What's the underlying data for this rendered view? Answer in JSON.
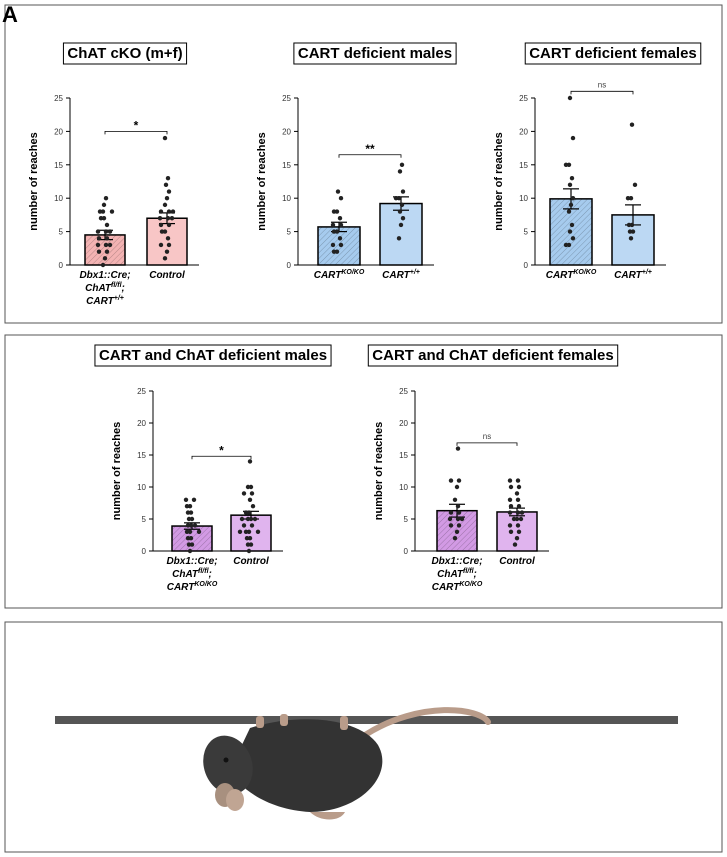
{
  "panel_label": "A",
  "chart_data": [
    {
      "type": "bar",
      "title": "ChAT cKO (m+f)",
      "ylabel": "number of reaches",
      "ylim": [
        0,
        25
      ],
      "yticks": [
        0,
        5,
        10,
        15,
        20,
        25
      ],
      "categories": [
        [
          [
            {
              "text": "Dbx1::Cre;"
            }
          ],
          [
            {
              "text": "ChAT"
            },
            {
              "sup": "fl/fl"
            },
            {
              "text": ";"
            }
          ],
          [
            {
              "text": "CART"
            },
            {
              "sup": "+/+"
            }
          ]
        ],
        [
          [
            {
              "text": "Control"
            }
          ]
        ]
      ],
      "values": [
        4.5,
        7
      ],
      "errors": [
        0.7,
        0.8
      ],
      "colors": [
        "#f3b3b3",
        "#f8c6c6"
      ],
      "hatched": [
        true,
        false
      ],
      "points": [
        [
          0,
          1,
          2,
          2,
          3,
          3,
          3,
          4,
          4,
          5,
          5,
          5,
          6,
          7,
          7,
          8,
          8,
          8,
          9,
          10
        ],
        [
          1,
          2,
          3,
          3,
          4,
          5,
          5,
          6,
          6,
          7,
          7,
          7,
          8,
          8,
          8,
          9,
          10,
          11,
          12,
          13,
          19
        ]
      ],
      "annotation": {
        "text": "*",
        "y": 20
      }
    },
    {
      "type": "bar",
      "title": "CART deficient males",
      "ylabel": "number of reaches",
      "ylim": [
        0,
        25
      ],
      "yticks": [
        0,
        5,
        10,
        15,
        20,
        25
      ],
      "categories": [
        [
          [
            {
              "text": "CART"
            },
            {
              "sup": "KO/KO"
            }
          ]
        ],
        [
          [
            {
              "text": "CART"
            },
            {
              "sup": "+/+"
            }
          ]
        ]
      ],
      "values": [
        5.7,
        9.2
      ],
      "errors": [
        0.7,
        1.0
      ],
      "colors": [
        "#a6cbee",
        "#bcd8f3"
      ],
      "hatched": [
        true,
        false
      ],
      "points": [
        [
          2,
          2,
          3,
          3,
          4,
          5,
          5,
          6,
          6,
          7,
          8,
          8,
          10,
          11
        ],
        [
          4,
          6,
          7,
          8,
          9,
          10,
          10,
          11,
          14,
          15
        ]
      ],
      "annotation": {
        "text": "**",
        "y": 16.5
      }
    },
    {
      "type": "bar",
      "title": "CART deficient females",
      "ylabel": "number of reaches",
      "ylim": [
        0,
        25
      ],
      "yticks": [
        0,
        5,
        10,
        15,
        20,
        25
      ],
      "categories": [
        [
          [
            {
              "text": "CART"
            },
            {
              "sup": "KO/KO"
            }
          ]
        ],
        [
          [
            {
              "text": "CART"
            },
            {
              "sup": "+/+"
            }
          ]
        ]
      ],
      "values": [
        9.9,
        7.5
      ],
      "errors": [
        1.5,
        1.5
      ],
      "colors": [
        "#a6cbee",
        "#bcd8f3"
      ],
      "hatched": [
        true,
        false
      ],
      "points": [
        [
          3,
          3,
          4,
          5,
          6,
          8,
          9,
          10,
          12,
          13,
          15,
          15,
          19,
          25
        ],
        [
          4,
          5,
          5,
          6,
          6,
          10,
          10,
          12,
          21
        ]
      ],
      "annotation": {
        "text": "ns",
        "y": 26
      }
    },
    {
      "type": "bar",
      "title": "CART and ChAT deficient males",
      "ylabel": "number of reaches",
      "ylim": [
        0,
        25
      ],
      "yticks": [
        0,
        5,
        10,
        15,
        20,
        25
      ],
      "categories": [
        [
          [
            {
              "text": "Dbx1::Cre;"
            }
          ],
          [
            {
              "text": "ChAT"
            },
            {
              "sup": "fl/fl"
            },
            {
              "text": ";"
            }
          ],
          [
            {
              "text": "CART"
            },
            {
              "sup": "KO/KO"
            }
          ]
        ],
        [
          [
            {
              "text": "Control"
            }
          ]
        ]
      ],
      "values": [
        3.9,
        5.6
      ],
      "errors": [
        0.5,
        0.6
      ],
      "colors": [
        "#d29ae4",
        "#e0b4ee"
      ],
      "hatched": [
        true,
        false
      ],
      "points": [
        [
          0,
          1,
          1,
          2,
          2,
          3,
          3,
          3,
          4,
          4,
          4,
          5,
          5,
          6,
          6,
          7,
          7,
          8,
          8
        ],
        [
          0,
          1,
          1,
          2,
          2,
          3,
          3,
          3,
          3,
          4,
          4,
          5,
          5,
          5,
          5,
          6,
          6,
          7,
          8,
          9,
          9,
          10,
          10,
          14
        ]
      ],
      "annotation": {
        "text": "*",
        "y": 14.8
      }
    },
    {
      "type": "bar",
      "title": "CART and ChAT deficient females",
      "ylabel": "number of reaches",
      "ylim": [
        0,
        25
      ],
      "yticks": [
        0,
        5,
        10,
        15,
        20,
        25
      ],
      "categories": [
        [
          [
            {
              "text": "Dbx1::Cre;"
            }
          ],
          [
            {
              "text": "ChAT"
            },
            {
              "sup": "fl/fl"
            },
            {
              "text": ";"
            }
          ],
          [
            {
              "text": "CART"
            },
            {
              "sup": "KO/KO"
            }
          ]
        ],
        [
          [
            {
              "text": "Control"
            }
          ]
        ]
      ],
      "values": [
        6.3,
        6.1
      ],
      "errors": [
        1.0,
        0.6
      ],
      "colors": [
        "#d29ae4",
        "#e0b4ee"
      ],
      "hatched": [
        true,
        false
      ],
      "points": [
        [
          2,
          3,
          4,
          4,
          5,
          5,
          5,
          6,
          6,
          7,
          8,
          10,
          11,
          11,
          16
        ],
        [
          1,
          2,
          3,
          3,
          4,
          4,
          5,
          5,
          5,
          6,
          6,
          6,
          7,
          7,
          8,
          8,
          9,
          10,
          10,
          11,
          11
        ]
      ],
      "annotation": {
        "text": "ns",
        "y": 16.9
      }
    }
  ]
}
